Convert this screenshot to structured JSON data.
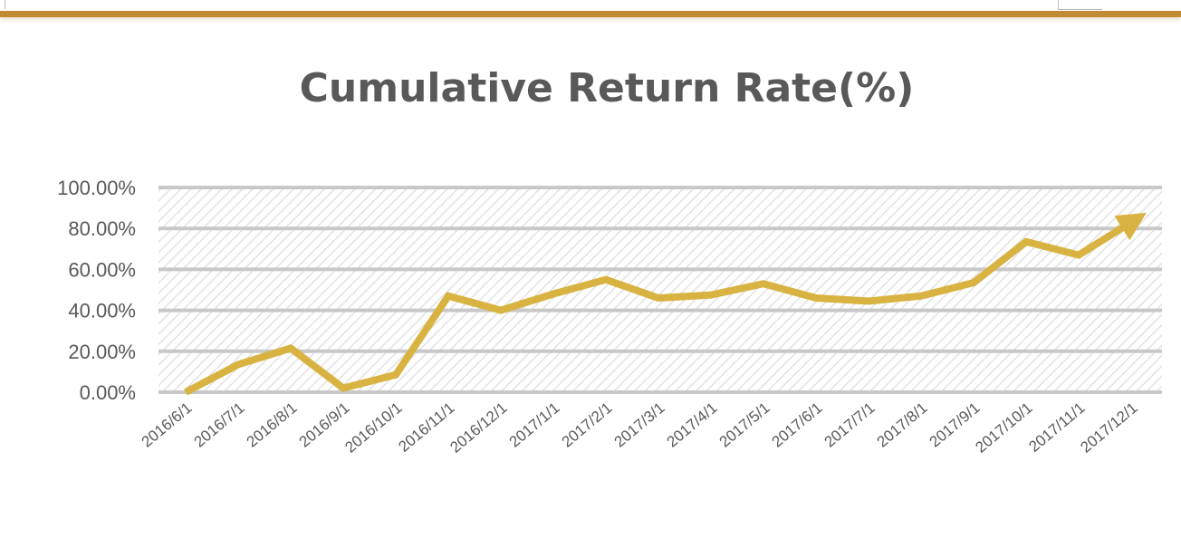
{
  "chart_data": {
    "type": "line",
    "title": "Cumulative Return Rate(%)",
    "xlabel": "",
    "ylabel": "",
    "categories": [
      "2016/6/1",
      "2016/7/1",
      "2016/8/1",
      "2016/9/1",
      "2016/10/1",
      "2016/11/1",
      "2016/12/1",
      "2017/1/1",
      "2017/2/1",
      "2017/3/1",
      "2017/4/1",
      "2017/5/1",
      "2017/6/1",
      "2017/7/1",
      "2017/8/1",
      "2017/9/1",
      "2017/10/1",
      "2017/11/1",
      "2017/12/1"
    ],
    "series": [
      {
        "name": "Cumulative Return Rate",
        "values": [
          0,
          13.5,
          21.5,
          2,
          8.5,
          47,
          40,
          48,
          55,
          46,
          47.5,
          53,
          46,
          44.5,
          47,
          53.5,
          73.5,
          67,
          83
        ]
      }
    ],
    "ylim": [
      0,
      100
    ],
    "yticks": [
      "0.00%",
      "20.00%",
      "40.00%",
      "60.00%",
      "80.00%",
      "100.00%"
    ],
    "ytick_values": [
      0,
      20,
      40,
      60,
      80,
      100
    ],
    "grid": true,
    "legend": "none",
    "line_color": "#D9B342",
    "grid_color": "#C8C8C8",
    "accent_bar_color": "#C28A34"
  }
}
